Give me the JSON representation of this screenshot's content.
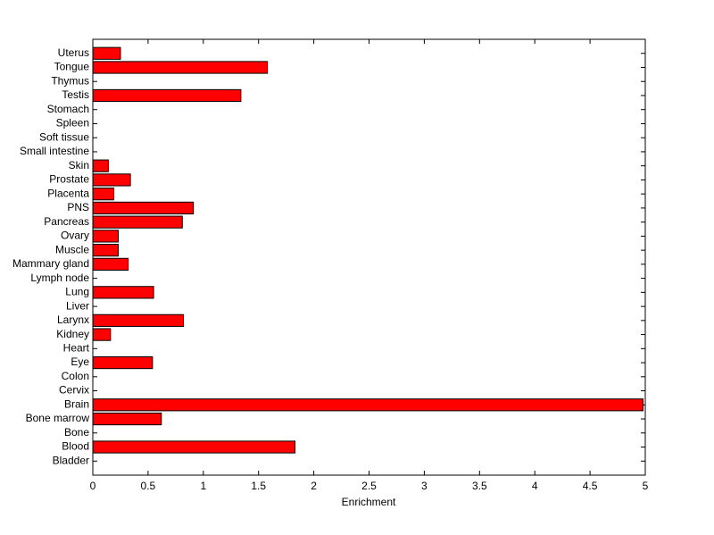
{
  "chart_data": {
    "type": "barh",
    "xlabel": "Enrichment",
    "categories": [
      "Bladder",
      "Blood",
      "Bone",
      "Bone marrow",
      "Brain",
      "Cervix",
      "Colon",
      "Eye",
      "Heart",
      "Kidney",
      "Larynx",
      "Liver",
      "Lung",
      "Lymph node",
      "Mammary gland",
      "Muscle",
      "Ovary",
      "Pancreas",
      "PNS",
      "Placenta",
      "Prostate",
      "Skin",
      "Small intestine",
      "Soft tissue",
      "Spleen",
      "Stomach",
      "Testis",
      "Thymus",
      "Tongue",
      "Uterus"
    ],
    "values": [
      0,
      1.83,
      0,
      0.62,
      4.98,
      0,
      0,
      0.54,
      0,
      0.16,
      0.82,
      0,
      0.55,
      0,
      0.32,
      0.23,
      0.23,
      0.81,
      0.91,
      0.19,
      0.34,
      0.14,
      0,
      0,
      0,
      0,
      1.34,
      0,
      1.58,
      0.25
    ],
    "color": "#ff0000",
    "xlim": [
      0,
      5
    ],
    "xticks": [
      0,
      0.5,
      1,
      1.5,
      2,
      2.5,
      3,
      3.5,
      4,
      4.5,
      5
    ]
  }
}
